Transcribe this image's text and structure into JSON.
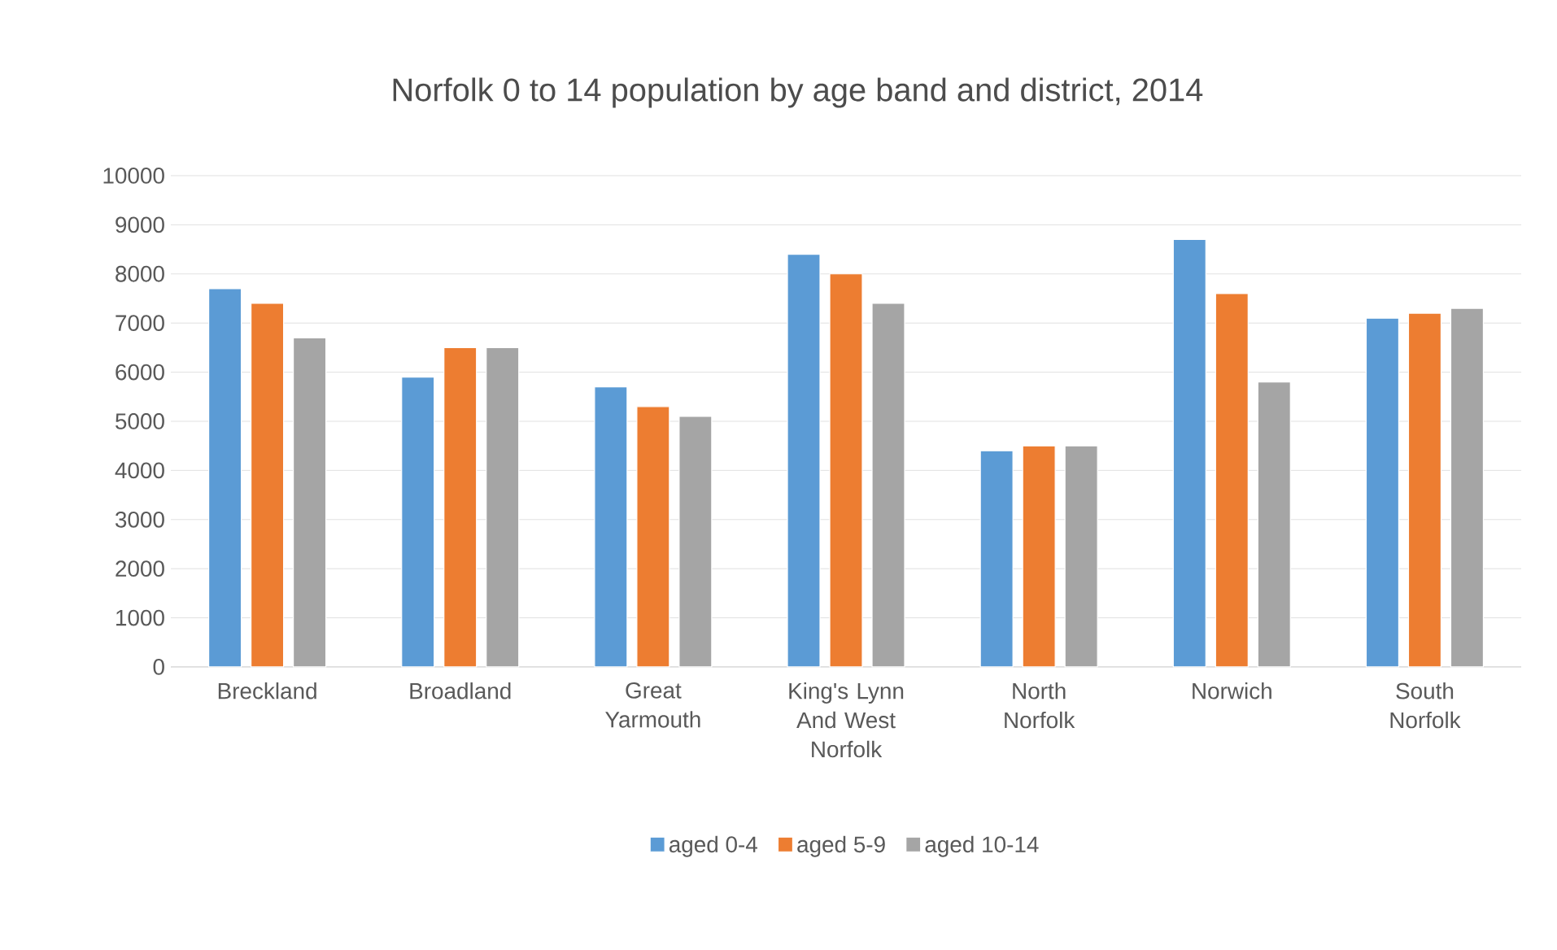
{
  "chart_data": {
    "type": "bar",
    "title": "Norfolk 0 to 14 population by age band and district, 2014",
    "categories": [
      "Breckland",
      "Broadland",
      "Great Yarmouth",
      "King's Lynn And West Norfolk",
      "North Norfolk",
      "Norwich",
      "South Norfolk"
    ],
    "series": [
      {
        "name": "aged 0-4",
        "color": "#5b9bd5",
        "values": [
          7700,
          5900,
          5700,
          8400,
          4400,
          8700,
          7100
        ]
      },
      {
        "name": "aged 5-9",
        "color": "#ed7d31",
        "values": [
          7400,
          6500,
          5300,
          8000,
          4500,
          7600,
          7200
        ]
      },
      {
        "name": "aged 10-14",
        "color": "#a5a5a5",
        "values": [
          6700,
          6500,
          5100,
          7400,
          4500,
          5800,
          7300
        ]
      }
    ],
    "ylim": [
      0,
      10000
    ],
    "yticks": [
      0,
      1000,
      2000,
      3000,
      4000,
      5000,
      6000,
      7000,
      8000,
      9000,
      10000
    ],
    "grid": "y",
    "legend": "bottom"
  }
}
